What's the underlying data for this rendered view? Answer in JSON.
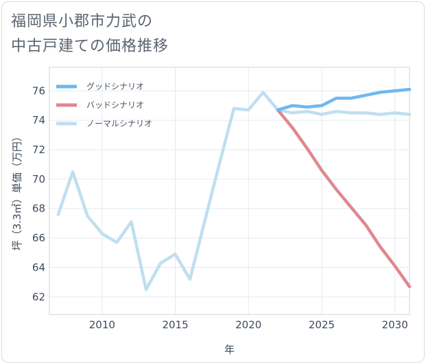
{
  "header": {
    "title_line1": "福岡県小郡市力武の",
    "title_line2": "中古戸建ての価格推移"
  },
  "chart_data": {
    "type": "line",
    "xlabel": "年",
    "ylabel": "坪（3.3㎡）単価（万円）",
    "xlim": [
      2006.4,
      2031
    ],
    "ylim": [
      60.8,
      77.6
    ],
    "xticks": [
      2010,
      2015,
      2020,
      2025,
      2030
    ],
    "yticks": [
      62,
      64,
      66,
      68,
      70,
      72,
      74,
      76
    ],
    "grid": true,
    "legend_position": "top-left",
    "series": [
      {
        "name": "グッドシナリオ",
        "color": "#6db8f0",
        "x": [
          2022,
          2023,
          2024,
          2025,
          2026,
          2027,
          2028,
          2029,
          2030,
          2031
        ],
        "y": [
          74.7,
          75.0,
          74.9,
          75.0,
          75.5,
          75.5,
          75.7,
          75.9,
          76.0,
          76.1
        ]
      },
      {
        "name": "バッドシナリオ",
        "color": "#e0878f",
        "x": [
          2022,
          2023,
          2024,
          2025,
          2026,
          2027,
          2028,
          2029,
          2030,
          2031
        ],
        "y": [
          74.7,
          73.5,
          72.1,
          70.6,
          69.3,
          68.1,
          66.9,
          65.4,
          64.1,
          62.7
        ]
      },
      {
        "name": "ノーマルシナリオ",
        "color": "#bfdfee",
        "x": [
          2007,
          2008,
          2009,
          2010,
          2011,
          2012,
          2013,
          2014,
          2015,
          2016,
          2017,
          2018,
          2019,
          2020,
          2021,
          2022,
          2023,
          2024,
          2025,
          2026,
          2027,
          2028,
          2029,
          2030,
          2031
        ],
        "y": [
          67.6,
          70.5,
          67.5,
          66.3,
          65.7,
          67.1,
          62.5,
          64.3,
          64.9,
          63.2,
          67.1,
          71.0,
          74.8,
          74.7,
          75.9,
          74.7,
          74.5,
          74.6,
          74.4,
          74.6,
          74.5,
          74.5,
          74.4,
          74.5,
          74.4
        ]
      }
    ]
  }
}
